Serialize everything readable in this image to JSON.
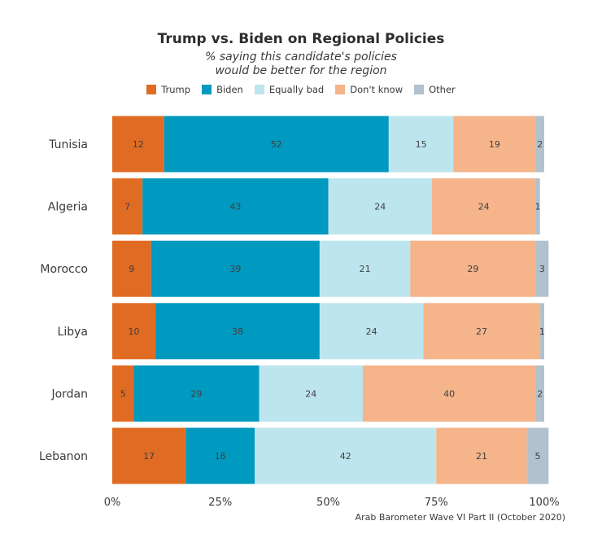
{
  "title": "Trump vs. Biden on Regional Policies",
  "subtitle_line1": "% saying this candidate's policies",
  "subtitle_line2": "would be better for the region",
  "source": "Arab Barometer Wave VI Part II (October 2020)",
  "chart_data": {
    "type": "bar",
    "orientation": "horizontal",
    "stacked": true,
    "categories": [
      "Tunisia",
      "Algeria",
      "Morocco",
      "Libya",
      "Jordan",
      "Lebanon"
    ],
    "series": [
      {
        "name": "Trump",
        "color": "#e06b23",
        "values": [
          12,
          7,
          9,
          10,
          5,
          17
        ]
      },
      {
        "name": "Biden",
        "color": "#0099bf",
        "values": [
          52,
          43,
          39,
          38,
          29,
          16
        ]
      },
      {
        "name": "Equally bad",
        "color": "#bde5ee",
        "values": [
          15,
          24,
          21,
          24,
          24,
          42
        ]
      },
      {
        "name": "Don't know",
        "color": "#f5b48a",
        "values": [
          19,
          24,
          29,
          27,
          40,
          21
        ]
      },
      {
        "name": "Other",
        "color": "#b1c1cd",
        "values": [
          2,
          1,
          3,
          1,
          2,
          5
        ]
      }
    ],
    "xlim": [
      0,
      100
    ],
    "xticks": [
      "0%",
      "25%",
      "50%",
      "75%",
      "100%"
    ],
    "legend_position": "top",
    "grid": false
  }
}
